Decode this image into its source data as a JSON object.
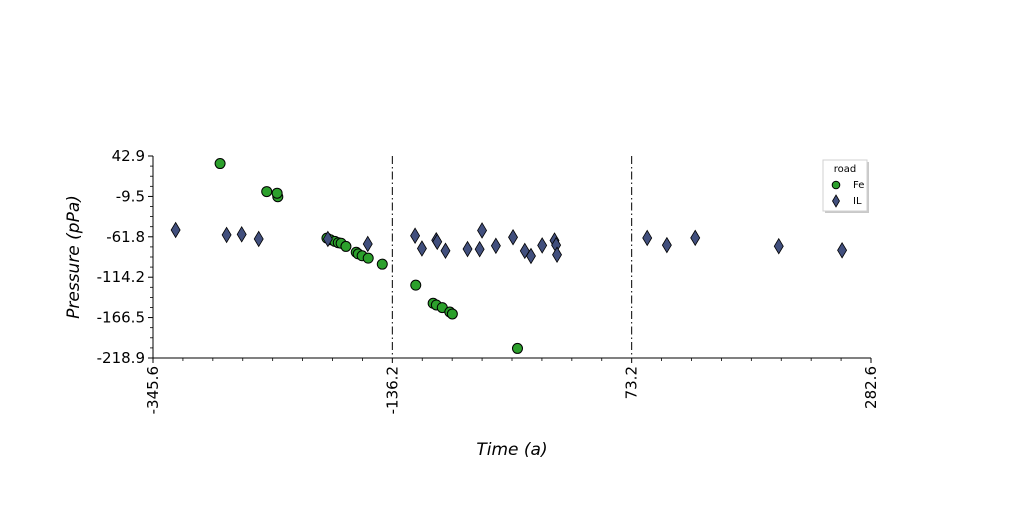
{
  "chart_data": {
    "type": "scatter",
    "xlabel": "Time (a)",
    "ylabel": "Pressure (pPa)",
    "xlim": [
      -345.6,
      282.6
    ],
    "ylim": [
      -218.9,
      42.9
    ],
    "xticks": [
      -345.6,
      -136.2,
      73.2,
      282.6
    ],
    "xtick_labels": [
      "-345.6",
      "-136.2",
      "73.2",
      "282.6"
    ],
    "yticks": [
      42.9,
      -9.5,
      -61.8,
      -114.2,
      -166.5,
      -218.9
    ],
    "ytick_labels": [
      "42.9",
      "-9.5",
      "-61.8",
      "-114.2",
      "-166.5",
      "-218.9"
    ],
    "vlines": [
      -136.2,
      73.2
    ],
    "grid": false,
    "legend": {
      "title": "road",
      "position": "top-right"
    },
    "series": [
      {
        "name": "Fe",
        "marker": "circle",
        "color": "#2ca02c",
        "points": [
          [
            -286.9,
            33.1
          ],
          [
            -246.1,
            -3.2
          ],
          [
            -236.4,
            -9.9
          ],
          [
            -237.0,
            -5.3
          ],
          [
            -193.4,
            -63.6
          ],
          [
            -190.5,
            -65.7
          ],
          [
            -186.5,
            -67.8
          ],
          [
            -183.5,
            -69.5
          ],
          [
            -181.0,
            -70.2
          ],
          [
            -176.8,
            -74.3
          ],
          [
            -167.8,
            -81.8
          ],
          [
            -166.1,
            -84.0
          ],
          [
            -162.6,
            -86.4
          ],
          [
            -157.3,
            -89.5
          ],
          [
            -145.0,
            -97.3
          ],
          [
            -115.7,
            -124.5
          ],
          [
            -100.5,
            -148.0
          ],
          [
            -97.7,
            -150.2
          ],
          [
            -92.5,
            -153.6
          ],
          [
            -85.9,
            -159.3
          ],
          [
            -83.7,
            -161.8
          ],
          [
            -26.7,
            -206.5
          ]
        ]
      },
      {
        "name": "IL",
        "marker": "diamond",
        "color": "#414f7d",
        "points": [
          [
            -325.8,
            -53.0
          ],
          [
            -281.2,
            -59.4
          ],
          [
            -268.0,
            -58.6
          ],
          [
            -253.1,
            -64.6
          ],
          [
            -192.6,
            -64.6
          ],
          [
            -157.7,
            -71.1
          ],
          [
            -116.3,
            -60.4
          ],
          [
            -110.3,
            -77.0
          ],
          [
            -97.8,
            -66.3
          ],
          [
            -96.9,
            -68.3
          ],
          [
            -89.7,
            -79.9
          ],
          [
            -70.4,
            -77.7
          ],
          [
            -59.8,
            -77.9
          ],
          [
            -57.7,
            -53.6
          ],
          [
            -45.6,
            -73.5
          ],
          [
            -30.6,
            -62.4
          ],
          [
            -20.3,
            -80.1
          ],
          [
            -14.9,
            -86.7
          ],
          [
            -5.1,
            -73.0
          ],
          [
            5.7,
            -66.6
          ],
          [
            7.1,
            -72.6
          ],
          [
            7.9,
            -85.1
          ],
          [
            86.8,
            -63.3
          ],
          [
            104.0,
            -72.6
          ],
          [
            128.8,
            -63.2
          ],
          [
            201.9,
            -74.0
          ],
          [
            257.3,
            -79.3
          ]
        ]
      }
    ]
  }
}
